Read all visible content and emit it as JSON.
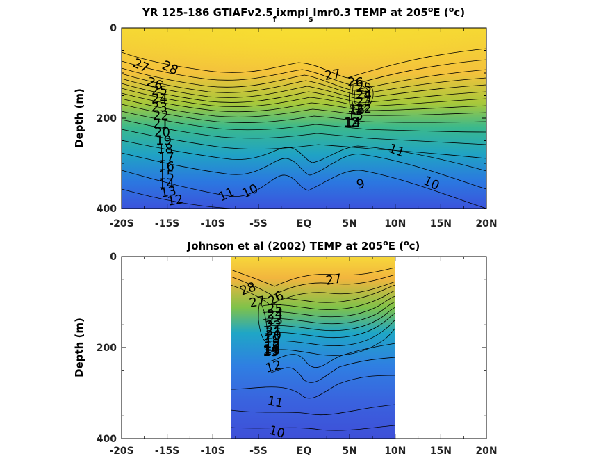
{
  "chart_data": [
    {
      "type": "heatmap",
      "title_main": "YR 125-186 GTIAFv2.5",
      "title_sub1": "f",
      "title_mid": "ixmpi",
      "title_sub2": "s",
      "title_end": "lmr0.3 TEMP at 205",
      "title_deg": "o",
      "title_e": "E (",
      "title_unit_sup": "o",
      "title_unit": "c)",
      "ylabel": "Depth (m)",
      "xlim": [
        -20,
        20
      ],
      "ylim": [
        0,
        400
      ],
      "x_tick_labels": [
        "-20S",
        "-15S",
        "-10S",
        "-5S",
        "EQ",
        "5N",
        "10N",
        "15N",
        "20N"
      ],
      "y_tick_labels": [
        "0",
        "200",
        "400"
      ],
      "contour_labels": [
        "27",
        "28",
        "26",
        "25",
        "24",
        "23",
        "22",
        "21",
        "20",
        "19",
        "18",
        "17",
        "16",
        "15",
        "14",
        "13",
        "12",
        "11",
        "10",
        "9",
        "27",
        "26",
        "25",
        "24",
        "23",
        "22",
        "16",
        "15",
        "14",
        "12",
        "11",
        "10"
      ],
      "colormap": "parula",
      "data_extent": [
        -20,
        20
      ]
    },
    {
      "type": "heatmap",
      "title_main": "Johnson et al (2002) TEMP at 205",
      "title_deg": "o",
      "title_e": "E (",
      "title_unit_sup": "o",
      "title_unit": "c)",
      "ylabel": "Depth (m)",
      "xlim": [
        -20,
        20
      ],
      "ylim": [
        0,
        400
      ],
      "x_tick_labels": [
        "-20S",
        "-15S",
        "-10S",
        "-5S",
        "EQ",
        "5N",
        "10N",
        "15N",
        "20N"
      ],
      "y_tick_labels": [
        "0",
        "200",
        "400"
      ],
      "contour_labels": [
        "28",
        "27",
        "26",
        "25",
        "24",
        "23",
        "22",
        "21",
        "20",
        "19",
        "18",
        "17",
        "16",
        "15",
        "14",
        "13",
        "12",
        "11",
        "10",
        "27"
      ],
      "colormap": "parula",
      "data_extent": [
        -8,
        10
      ]
    }
  ]
}
